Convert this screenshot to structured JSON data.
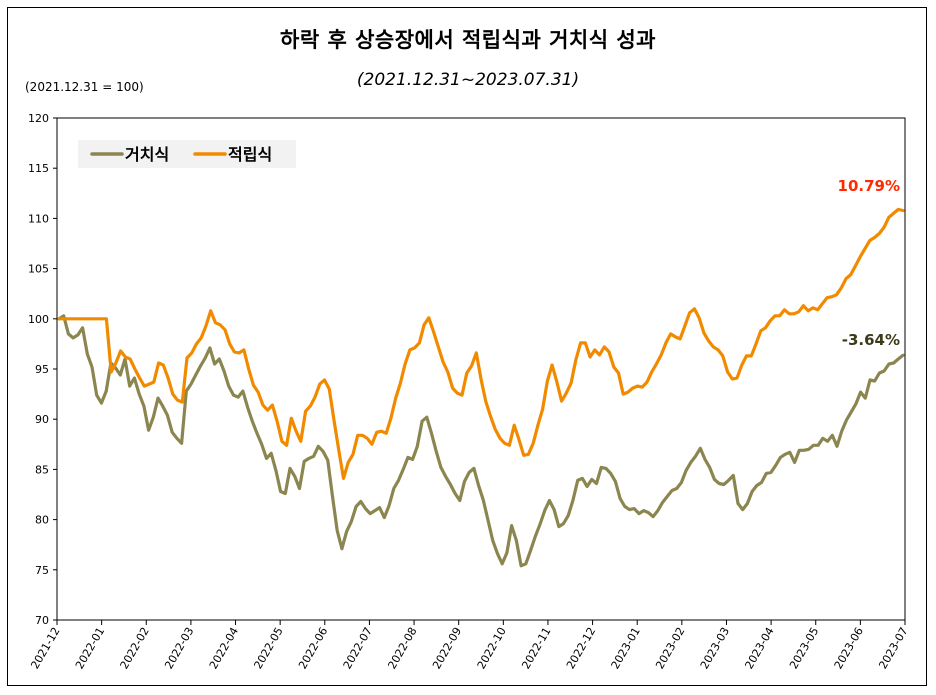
{
  "title": "하락 후 상승장에서 적립식과 거치식 성과",
  "subtitle": "(2021.12.31~2023.07.31)",
  "base_note": "(2021.12.31  =  100)",
  "chart_data": {
    "type": "line",
    "x_tick_labels": [
      "2021-12",
      "2022-01",
      "2022-02",
      "2022-03",
      "2022-04",
      "2022-05",
      "2022-06",
      "2022-07",
      "2022-08",
      "2022-09",
      "2022-10",
      "2022-11",
      "2022-12",
      "2023-01",
      "2023-02",
      "2023-03",
      "2023-04",
      "2023-05",
      "2023-06",
      "2023-07"
    ],
    "y_ticks": [
      70,
      75,
      80,
      85,
      90,
      95,
      100,
      105,
      110,
      115,
      120
    ],
    "ylim": [
      70,
      120
    ],
    "legend_position": "top-left",
    "series": [
      {
        "name": "거치식",
        "color": "#8B8650",
        "end_label": "-3.64%",
        "end_label_color": "#3B3B1A",
        "values": [
          100,
          100.3,
          98.5,
          98.1,
          98.4,
          99.1,
          96.5,
          95.2,
          92.4,
          91.6,
          92.8,
          95.6,
          95.1,
          94.4,
          96.0,
          93.3,
          94.1,
          92.5,
          91.3,
          88.9,
          90.2,
          92.1,
          91.3,
          90.4,
          88.7,
          88.1,
          87.6,
          92.8,
          93.5,
          94.4,
          95.3,
          96.1,
          97.1,
          95.5,
          96.0,
          94.8,
          93.3,
          92.4,
          92.2,
          92.8,
          91.2,
          89.8,
          88.6,
          87.5,
          86.1,
          86.6,
          84.9,
          82.8,
          82.6,
          85.1,
          84.3,
          83.1,
          85.8,
          86.1,
          86.3,
          87.3,
          86.8,
          85.9,
          82.3,
          78.9,
          77.1,
          78.8,
          79.8,
          81.3,
          81.8,
          81.1,
          80.6,
          80.9,
          81.2,
          80.2,
          81.4,
          83.1,
          83.9,
          85.0,
          86.2,
          86.0,
          87.3,
          89.8,
          90.2,
          88.6,
          86.8,
          85.2,
          84.3,
          83.5,
          82.6,
          81.9,
          83.8,
          84.7,
          85.1,
          83.4,
          81.9,
          79.9,
          77.9,
          76.6,
          75.6,
          76.7,
          79.4,
          77.9,
          75.4,
          75.6,
          76.9,
          78.3,
          79.5,
          80.9,
          81.9,
          81.0,
          79.3,
          79.6,
          80.4,
          81.9,
          83.9,
          84.1,
          83.3,
          84.0,
          83.6,
          85.2,
          85.1,
          84.6,
          83.8,
          82.1,
          81.3,
          81.0,
          81.1,
          80.6,
          80.9,
          80.7,
          80.3,
          80.9,
          81.7,
          82.3,
          82.9,
          83.1,
          83.7,
          84.9,
          85.7,
          86.3,
          87.1,
          86.0,
          85.2,
          84.0,
          83.6,
          83.5,
          83.9,
          84.4,
          81.6,
          81.0,
          81.6,
          82.8,
          83.4,
          83.7,
          84.6,
          84.7,
          85.4,
          86.2,
          86.5,
          86.7,
          85.7,
          86.9,
          86.9,
          87.0,
          87.4,
          87.4,
          88.1,
          87.8,
          88.4,
          87.3,
          88.8,
          89.9,
          90.7,
          91.5,
          92.7,
          92.1,
          93.9,
          93.8,
          94.6,
          94.8,
          95.5,
          95.6,
          96.0,
          96.36
        ]
      },
      {
        "name": "적립식",
        "color": "#F28A00",
        "end_label": "10.79%",
        "end_label_color": "#FF2A00",
        "values": [
          100,
          100,
          100,
          100,
          100,
          100,
          100,
          100,
          100,
          100,
          100,
          94.7,
          95.6,
          96.8,
          96.2,
          96.0,
          95.0,
          94.1,
          93.3,
          93.5,
          93.7,
          95.6,
          95.4,
          94.1,
          92.5,
          91.9,
          91.7,
          96.1,
          96.6,
          97.5,
          98.1,
          99.3,
          100.8,
          99.6,
          99.4,
          98.9,
          97.5,
          96.7,
          96.6,
          96.9,
          95.0,
          93.4,
          92.7,
          91.4,
          90.9,
          91.4,
          89.8,
          87.8,
          87.4,
          90.1,
          88.8,
          87.8,
          90.8,
          91.3,
          92.2,
          93.5,
          93.9,
          93.0,
          89.9,
          86.9,
          84.1,
          85.7,
          86.5,
          88.4,
          88.4,
          88.1,
          87.5,
          88.7,
          88.8,
          88.6,
          90.1,
          92.1,
          93.6,
          95.5,
          96.9,
          97.1,
          97.6,
          99.4,
          100.1,
          98.7,
          97.2,
          95.7,
          94.7,
          93.1,
          92.6,
          92.4,
          94.6,
          95.3,
          96.6,
          94.0,
          91.8,
          90.3,
          89.0,
          88.1,
          87.6,
          87.4,
          89.4,
          88.0,
          86.4,
          86.5,
          87.6,
          89.4,
          91.0,
          93.8,
          95.4,
          93.7,
          91.8,
          92.6,
          93.6,
          95.9,
          97.6,
          97.6,
          96.2,
          96.9,
          96.4,
          97.2,
          96.7,
          95.2,
          94.6,
          92.5,
          92.7,
          93.1,
          93.3,
          93.2,
          93.7,
          94.7,
          95.5,
          96.4,
          97.6,
          98.5,
          98.2,
          98.0,
          99.3,
          100.6,
          101.0,
          100.1,
          98.6,
          97.8,
          97.2,
          96.9,
          96.3,
          94.7,
          94.0,
          94.1,
          95.4,
          96.3,
          96.3,
          97.5,
          98.8,
          99.1,
          99.8,
          100.3,
          100.3,
          100.9,
          100.5,
          100.5,
          100.7,
          101.3,
          100.8,
          101.1,
          100.9,
          101.5,
          102.1,
          102.2,
          102.4,
          103.1,
          104.0,
          104.4,
          105.3,
          106.2,
          107.0,
          107.8,
          108.1,
          108.5,
          109.1,
          110.1,
          110.5,
          110.9,
          110.79
        ]
      }
    ]
  }
}
